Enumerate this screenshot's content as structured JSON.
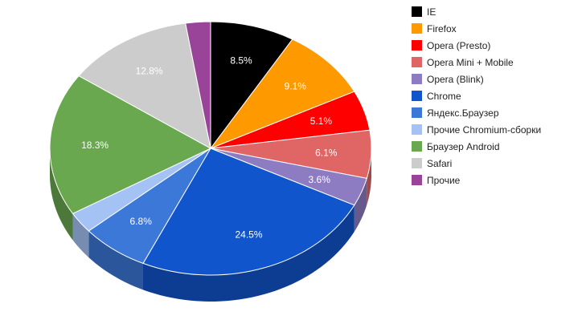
{
  "chart_data": {
    "type": "pie",
    "title": "",
    "legend_position": "right",
    "slices": [
      {
        "name": "IE",
        "value": 8.5,
        "label": "8.5%",
        "color": "#000000"
      },
      {
        "name": "Firefox",
        "value": 9.1,
        "label": "9.1%",
        "color": "#ff9900"
      },
      {
        "name": "Opera (Presto)",
        "value": 5.1,
        "label": "5.1%",
        "color": "#ff0000"
      },
      {
        "name": "Opera Mini + Mobile",
        "value": 6.1,
        "label": "6.1%",
        "color": "#e06666"
      },
      {
        "name": "Opera (Blink)",
        "value": 3.6,
        "label": "3.6%",
        "color": "#8e7cc3"
      },
      {
        "name": "Chrome",
        "value": 24.5,
        "label": "24.5%",
        "color": "#1155cc"
      },
      {
        "name": "Яндекс.Браузер",
        "value": 6.8,
        "label": "6.8%",
        "color": "#3c78d8"
      },
      {
        "name": "Прочие Chromium-сборки",
        "value": 2.7,
        "label": "",
        "color": "#a4c2f4"
      },
      {
        "name": "Браузер Android",
        "value": 18.3,
        "label": "18.3%",
        "color": "#6aa84f"
      },
      {
        "name": "Safari",
        "value": 12.8,
        "label": "12.8%",
        "color": "#cccccc"
      },
      {
        "name": "Прочие",
        "value": 2.5,
        "label": "",
        "color": "#994499"
      }
    ]
  }
}
